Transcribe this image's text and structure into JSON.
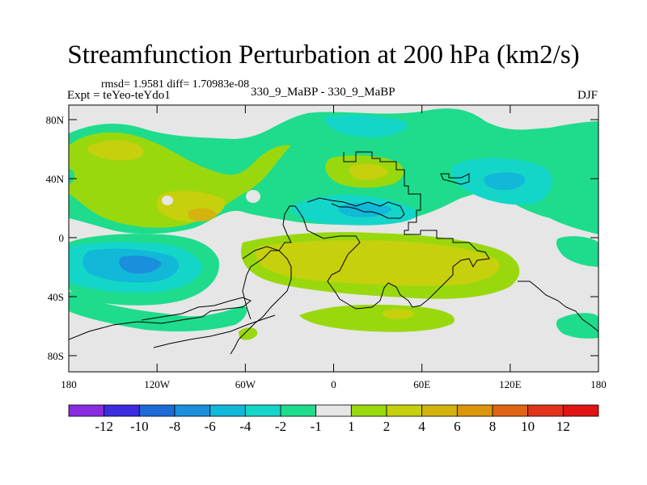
{
  "title": "Streamfunction Perturbation at 200 hPa (km2/s)",
  "stats_line": "rmsd= 1.9581 diff= 1.70983e-08",
  "experiment": "Expt = teYeo-teYdo1",
  "comparison": "330_9_MaBP - 330_9_MaBP",
  "season": "DJF",
  "y_ticks": [
    {
      "lat": 80,
      "label": "80N"
    },
    {
      "lat": 40,
      "label": "40N"
    },
    {
      "lat": 0,
      "label": "0"
    },
    {
      "lat": -40,
      "label": "40S"
    },
    {
      "lat": -80,
      "label": "80S"
    }
  ],
  "x_ticks": [
    {
      "lon": -180,
      "label": "180"
    },
    {
      "lon": -120,
      "label": "120W"
    },
    {
      "lon": -60,
      "label": "60W"
    },
    {
      "lon": 0,
      "label": "0"
    },
    {
      "lon": 60,
      "label": "60E"
    },
    {
      "lon": 120,
      "label": "120E"
    },
    {
      "lon": 180,
      "label": "180"
    }
  ],
  "colorbar": {
    "colors": [
      "#8a2be2",
      "#3b2ce0",
      "#1e6ad6",
      "#1a8fdc",
      "#12b8d8",
      "#14d6c8",
      "#1edc8c",
      "#e6e6e6",
      "#9ad80e",
      "#c6d00c",
      "#d4b40c",
      "#dc960c",
      "#e06414",
      "#e0341c",
      "#e01414"
    ],
    "labels": [
      "-12",
      "-10",
      "-8",
      "-6",
      "-4",
      "-2",
      "-1",
      "1",
      "2",
      "4",
      "6",
      "8",
      "10",
      "12"
    ]
  }
}
